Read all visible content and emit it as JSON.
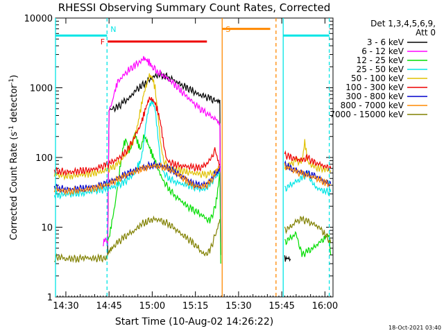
{
  "chart_data": {
    "type": "line",
    "title": "RHESSI Observing Summary Count Rates, Corrected",
    "xlabel": "Start Time (10-Aug-02 14:26:22)",
    "ylabel_main": "Corrected Count Rate (s",
    "ylabel_sup1": "-1",
    "ylabel_mid": " detector",
    "ylabel_sup2": "-1",
    "ylabel_end": ")",
    "xlim": [
      "14:26",
      "16:03"
    ],
    "ylim": [
      1,
      10000
    ],
    "yscale": "log",
    "x_ticks": [
      {
        "label": "14:30",
        "t": 30
      },
      {
        "label": "14:45",
        "t": 45
      },
      {
        "label": "15:00",
        "t": 60
      },
      {
        "label": "15:15",
        "t": 75
      },
      {
        "label": "15:30",
        "t": 90
      },
      {
        "label": "15:45",
        "t": 105
      },
      {
        "label": "16:00",
        "t": 120
      }
    ],
    "y_ticks": [
      {
        "label": "1",
        "value": 1
      },
      {
        "label": "10",
        "value": 10
      },
      {
        "label": "100",
        "value": 100
      },
      {
        "label": "1000",
        "value": 1000
      },
      {
        "label": "10000",
        "value": 10000
      }
    ],
    "legend_header": [
      "Det 1,3,4,5,6,9,",
      "Att 0"
    ],
    "legend_position": "right",
    "series": [
      {
        "name": "3 - 6 keV",
        "color": "#000000",
        "x": [
          44.5,
          45,
          46,
          48,
          50,
          52,
          54,
          56,
          58,
          60,
          62,
          64,
          66,
          68,
          70,
          72,
          74,
          76,
          78,
          80,
          82,
          83.5,
          83.8
        ],
        "y": [
          4,
          480,
          500,
          520,
          620,
          700,
          900,
          1050,
          1200,
          1400,
          1550,
          1500,
          1400,
          1250,
          1100,
          1000,
          900,
          800,
          750,
          700,
          650,
          600,
          4
        ]
      },
      {
        "name": "6 - 12 keV",
        "color": "#ff00ff",
        "x": [
          43,
          44,
          44.5,
          45,
          46,
          47,
          48,
          50,
          52,
          54,
          56,
          57,
          58,
          59,
          60,
          62,
          64,
          66,
          68,
          70,
          72,
          74,
          76,
          78,
          80,
          82,
          83.5,
          83.8
        ],
        "y": [
          6,
          7,
          6,
          480,
          600,
          900,
          1200,
          1500,
          1800,
          2100,
          2400,
          2650,
          2500,
          2300,
          2000,
          1700,
          1500,
          1300,
          1100,
          900,
          750,
          620,
          520,
          450,
          400,
          350,
          300,
          6
        ]
      },
      {
        "name": "12 - 25 keV",
        "color": "#00dd00",
        "x": [
          44.5,
          45,
          46,
          47,
          48,
          49,
          50,
          51,
          52,
          53,
          54,
          55,
          56,
          57,
          58,
          59,
          60,
          61,
          62,
          63,
          64,
          66,
          68,
          70,
          72,
          74,
          76,
          78,
          80,
          82,
          83,
          83.5,
          83.8
        ],
        "y": [
          6,
          7,
          12,
          20,
          40,
          80,
          150,
          180,
          120,
          150,
          220,
          160,
          130,
          200,
          180,
          140,
          110,
          90,
          70,
          55,
          45,
          35,
          28,
          24,
          20,
          18,
          16,
          14,
          12,
          20,
          40,
          60,
          3
        ]
      },
      {
        "name": "25 - 50 keV",
        "color": "#00e5e5",
        "x": [
          26,
          28,
          30,
          32,
          34,
          36,
          38,
          40,
          42,
          44,
          46,
          48,
          50,
          52,
          54,
          55,
          56,
          57,
          58,
          59,
          60,
          61,
          62,
          63,
          64,
          66,
          68,
          70,
          72,
          74,
          76,
          78,
          80,
          82,
          83.5
        ],
        "y": [
          30,
          29,
          30,
          30,
          31,
          31,
          32,
          33,
          34,
          35,
          37,
          40,
          43,
          50,
          60,
          75,
          90,
          150,
          350,
          550,
          650,
          500,
          200,
          80,
          60,
          50,
          45,
          42,
          40,
          38,
          36,
          34,
          40,
          55,
          65
        ]
      },
      {
        "name": "50 - 100 keV",
        "color": "#e0c000",
        "x": [
          26,
          28,
          30,
          32,
          34,
          36,
          38,
          40,
          42,
          44,
          46,
          48,
          50,
          52,
          54,
          55,
          56,
          57,
          58,
          59,
          60,
          61,
          62,
          63,
          64,
          66,
          68,
          70,
          72,
          74,
          76,
          78,
          80,
          82,
          83.5
        ],
        "y": [
          58,
          56,
          55,
          55,
          56,
          57,
          58,
          60,
          62,
          65,
          70,
          80,
          100,
          130,
          200,
          300,
          500,
          800,
          1100,
          1500,
          1400,
          1000,
          400,
          150,
          90,
          72,
          68,
          65,
          62,
          60,
          58,
          56,
          58,
          62,
          60
        ]
      },
      {
        "name": "100 - 300 keV",
        "color": "#ee0000",
        "x": [
          26,
          28,
          30,
          32,
          34,
          36,
          38,
          40,
          42,
          44,
          46,
          48,
          50,
          52,
          54,
          56,
          57,
          58,
          59,
          60,
          61,
          62,
          63,
          64,
          65,
          66,
          68,
          70,
          72,
          74,
          76,
          78,
          80,
          82,
          83.5
        ],
        "y": [
          65,
          64,
          62,
          62,
          64,
          65,
          66,
          68,
          72,
          78,
          85,
          95,
          110,
          140,
          200,
          300,
          400,
          550,
          700,
          680,
          600,
          450,
          300,
          150,
          95,
          85,
          80,
          76,
          74,
          72,
          70,
          75,
          90,
          130,
          80
        ]
      },
      {
        "name": "300 - 800 keV",
        "color": "#0000cc",
        "x": [
          26,
          28,
          30,
          32,
          34,
          36,
          38,
          40,
          42,
          44,
          46,
          48,
          50,
          52,
          54,
          56,
          58,
          60,
          62,
          64,
          66,
          68,
          70,
          72,
          74,
          76,
          78,
          80,
          82,
          83.5
        ],
        "y": [
          38,
          36,
          35,
          35,
          36,
          36,
          37,
          38,
          40,
          42,
          45,
          50,
          55,
          60,
          65,
          70,
          75,
          78,
          78,
          75,
          70,
          62,
          55,
          48,
          42,
          40,
          40,
          45,
          60,
          75
        ]
      },
      {
        "name": "800 - 7000 keV",
        "color": "#ff8800",
        "x": [
          26,
          28,
          30,
          32,
          34,
          36,
          38,
          40,
          42,
          44,
          46,
          48,
          50,
          52,
          54,
          56,
          58,
          60,
          62,
          64,
          66,
          68,
          70,
          72,
          74,
          76,
          78,
          80,
          82,
          83.5
        ],
        "y": [
          36,
          34,
          33,
          33,
          34,
          34,
          35,
          36,
          38,
          40,
          43,
          48,
          53,
          58,
          63,
          68,
          72,
          76,
          76,
          73,
          68,
          60,
          53,
          46,
          40,
          38,
          38,
          43,
          58,
          72
        ]
      },
      {
        "name": "7000 - 15000 keV",
        "color": "#808000",
        "x": [
          26,
          28,
          30,
          32,
          34,
          36,
          38,
          40,
          42,
          44,
          45,
          46,
          48,
          50,
          52,
          54,
          56,
          58,
          60,
          62,
          64,
          66,
          68,
          70,
          72,
          74,
          76,
          78,
          80,
          82,
          83.5
        ],
        "y": [
          3.5,
          3.8,
          3.5,
          3.6,
          3.5,
          3.7,
          3.6,
          3.5,
          3.6,
          3.5,
          4.5,
          5,
          6,
          7,
          8,
          9,
          11,
          12,
          13,
          13,
          12,
          11,
          9.5,
          8,
          7,
          6,
          5,
          4,
          4.5,
          8,
          13
        ]
      }
    ],
    "series_after": [
      {
        "name": "3 - 6 keV",
        "color": "#000000",
        "x": [
          106,
          107,
          108
        ],
        "y": [
          3.5,
          3.6,
          3.5
        ]
      },
      {
        "name": "12 - 25 keV",
        "color": "#00dd00",
        "x": [
          106,
          108,
          110,
          112,
          114,
          116,
          118,
          120,
          121.5,
          122
        ],
        "y": [
          6,
          7,
          8,
          4,
          4.5,
          5,
          6,
          7,
          8,
          4
        ]
      },
      {
        "name": "25 - 50 keV",
        "color": "#00e5e5",
        "x": [
          106,
          108,
          110,
          112,
          114,
          116,
          118,
          120,
          122
        ],
        "y": [
          35,
          40,
          45,
          50,
          60,
          40,
          35,
          33,
          32
        ]
      },
      {
        "name": "50 - 100 keV",
        "color": "#e0c000",
        "x": [
          106,
          108,
          110,
          112,
          113,
          114,
          116,
          118,
          120,
          122
        ],
        "y": [
          70,
          80,
          90,
          85,
          170,
          85,
          75,
          70,
          68,
          65
        ]
      },
      {
        "name": "100 - 300 keV",
        "color": "#ee0000",
        "x": [
          106,
          108,
          110,
          112,
          114,
          116,
          118,
          120,
          122
        ],
        "y": [
          110,
          100,
          95,
          90,
          100,
          85,
          80,
          75,
          70
        ]
      },
      {
        "name": "300 - 800 keV",
        "color": "#0000cc",
        "x": [
          106,
          108,
          110,
          112,
          114,
          116,
          118,
          120,
          122
        ],
        "y": [
          80,
          70,
          65,
          60,
          58,
          55,
          50,
          45,
          42
        ]
      },
      {
        "name": "800 - 7000 keV",
        "color": "#ff8800",
        "x": [
          106,
          108,
          110,
          112,
          114,
          116,
          118,
          120,
          122
        ],
        "y": [
          75,
          68,
          62,
          58,
          55,
          52,
          48,
          44,
          40
        ]
      },
      {
        "name": "7000 - 15000 keV",
        "color": "#808000",
        "x": [
          106,
          108,
          110,
          112,
          114,
          116,
          118,
          120,
          122
        ],
        "y": [
          9,
          10,
          12,
          13,
          12,
          11,
          10,
          8,
          6
        ]
      }
    ],
    "markers": [
      {
        "label": "N",
        "color": "#00e5e5",
        "t": 44.3,
        "dashed": true
      },
      {
        "label": "",
        "color": "#00e5e5",
        "t": 121.5,
        "dashed": true
      },
      {
        "label": "",
        "color": "#00e5e5",
        "t": 26.4,
        "dashed": false
      },
      {
        "label": "",
        "color": "#00e5e5",
        "t": 105.5,
        "dashed": false
      },
      {
        "label": "S",
        "color": "#ff8800",
        "t": 84.3,
        "dashed": false
      },
      {
        "label": "",
        "color": "#ff8800",
        "t": 103,
        "dashed": true
      }
    ],
    "bars": [
      {
        "label": "",
        "color": "#00e5e5",
        "t0": 26.4,
        "t1": 44.3,
        "level": 5600
      },
      {
        "label": "",
        "color": "#00e5e5",
        "t0": 105.5,
        "t1": 121.5,
        "level": 5600
      },
      {
        "label": "F",
        "color": "#ee0000",
        "t0": 44.5,
        "t1": 79,
        "level": 4600
      },
      {
        "label": "",
        "color": "#ff8800",
        "t0": 84.3,
        "t1": 101,
        "level": 7000
      }
    ]
  },
  "footer": {
    "date_stamp": "18-Oct-2021 03:40"
  }
}
